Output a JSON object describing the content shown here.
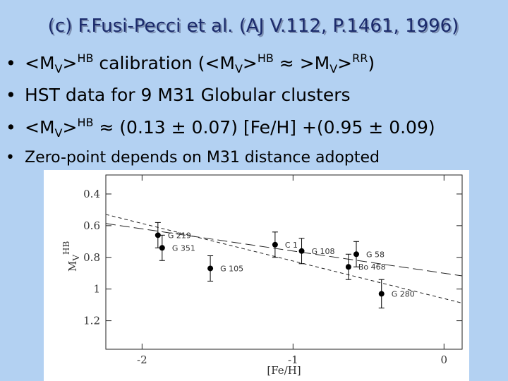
{
  "slide": {
    "title": "(c) F.Fusi-Pecci et al. (AJ V.112, P.1461, 1996)",
    "bullets": [
      [
        "<M",
        "V",
        ">",
        "HB",
        " calibration (<M",
        "V",
        ">",
        "HB",
        " ≈ >M",
        "V",
        ">",
        "RR",
        ")"
      ],
      [
        "HST data for 9 M31 Globular clusters"
      ],
      [
        "<M",
        "V",
        ">",
        "HB",
        " ≈ (0.13 ± 0.07) [Fe/H] +(0.95 ± 0.09)"
      ],
      [
        "Zero-point depends on M31 distance adopted"
      ]
    ]
  },
  "chart_data": {
    "type": "scatter",
    "xlabel": "[Fe/H]",
    "ylabel": {
      "base": "M",
      "sub": "V",
      "sup": "HB"
    },
    "x": [
      -1.895,
      -1.867,
      -1.548,
      -1.119,
      -0.943,
      -0.581,
      -0.633,
      -0.414
    ],
    "values": [
      0.66,
      0.74,
      0.87,
      0.72,
      0.76,
      0.78,
      0.86,
      1.03
    ],
    "errors": [
      0.08,
      0.08,
      0.08,
      0.08,
      0.08,
      0.08,
      0.08,
      0.09
    ],
    "labels": [
      "G 219",
      "G 351",
      "G 105",
      "C 1",
      "G 108",
      "G 58",
      "Bo 468",
      "G 280"
    ],
    "fits": [
      {
        "slope": 0.14,
        "intercept": 0.9,
        "dash": "14 6"
      },
      {
        "slope": 0.237,
        "intercept": 1.06,
        "dash": "5 4"
      }
    ],
    "color": "#000000",
    "xlim": [
      -2.24,
      0.12
    ],
    "ylim": [
      0.28,
      1.38
    ],
    "y_inverted": true,
    "xticks": [
      -2,
      -1,
      0
    ],
    "yticks": [
      0.4,
      0.6,
      0.8,
      1,
      1.2
    ]
  }
}
